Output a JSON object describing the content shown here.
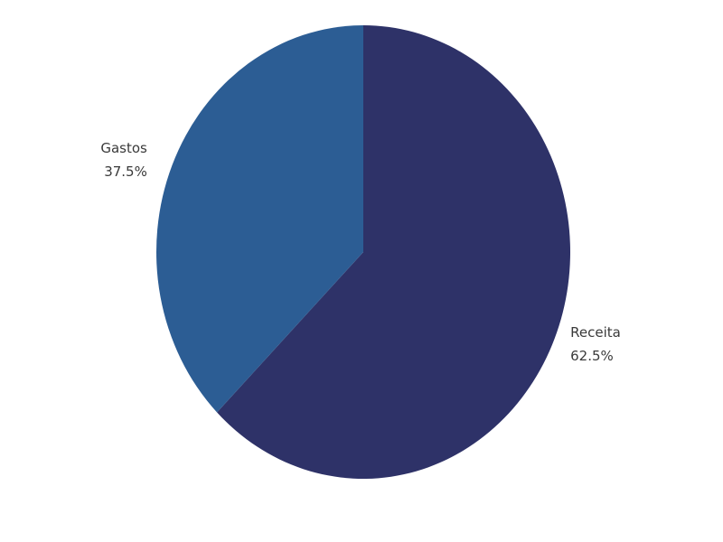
{
  "chart_data": {
    "type": "pie",
    "title": "",
    "slices": [
      {
        "name": "Receita",
        "value": 62.5,
        "label": "62.5%",
        "color": "#2e3268"
      },
      {
        "name": "Gastos",
        "value": 37.5,
        "label": "37.5%",
        "color": "#2c5d94"
      }
    ],
    "legend": "none"
  }
}
